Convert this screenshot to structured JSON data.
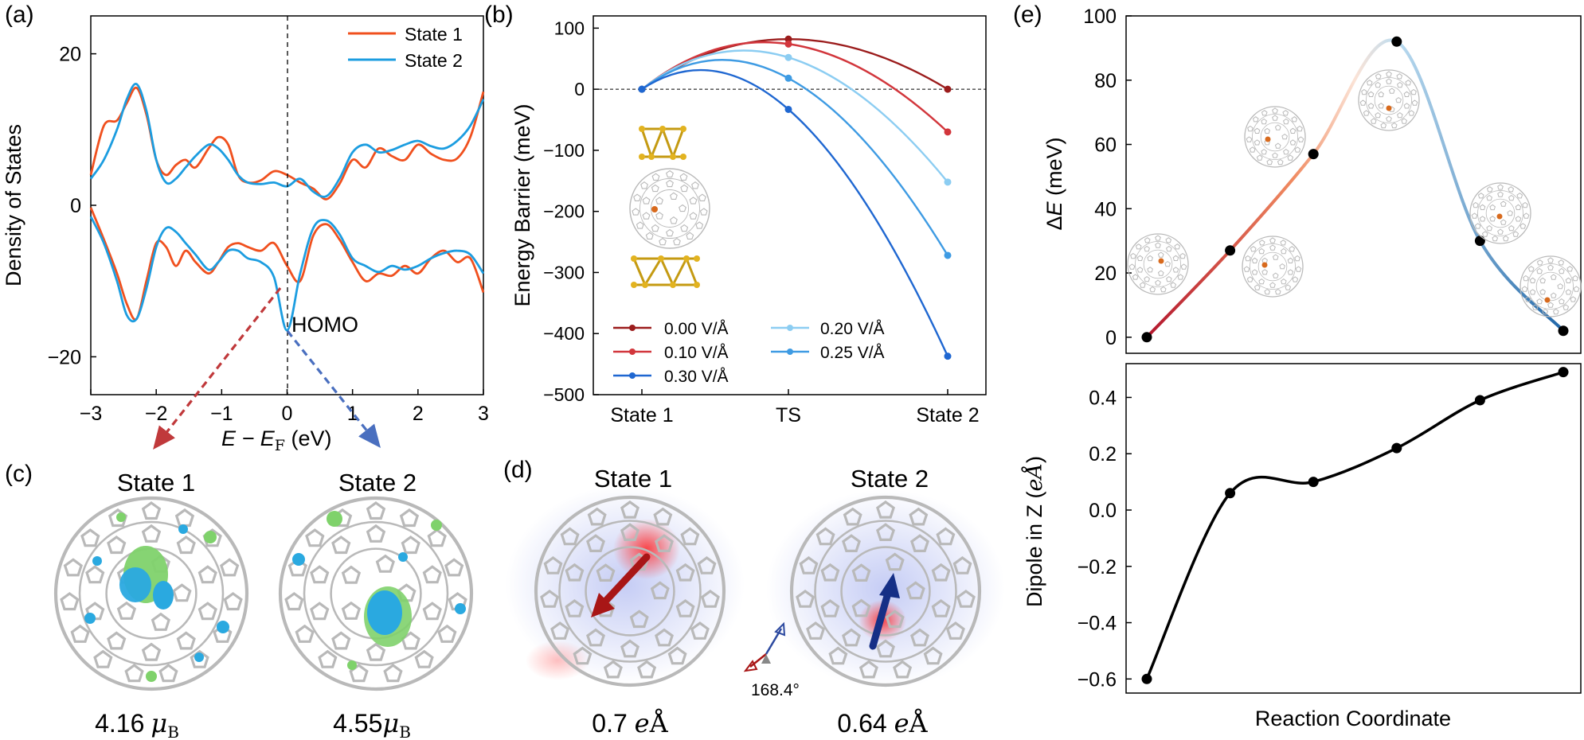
{
  "panel_labels": {
    "a": "(a)",
    "b": "(b)",
    "c": "(c)",
    "d": "(d)",
    "e": "(e)"
  },
  "colors": {
    "state1": "#f0501e",
    "state2": "#1c9de0",
    "field_0": "#9b1c1c",
    "field_010": "#d2363c",
    "field_020": "#8ccdf2",
    "field_025": "#3e9be3",
    "field_030": "#1f67d1",
    "arrow1": "#b02020",
    "arrow2": "#2d5fb0",
    "cage": "#b9b9b9",
    "gold": "#e2b320",
    "lobe_green": "#7fd26b",
    "lobe_blue": "#2aa9e0"
  },
  "chart_data": [
    {
      "id": "a",
      "type": "line",
      "title": "",
      "xlabel_main": "E − E",
      "xlabel_sub": "F",
      "xlabel_unit": " (eV)",
      "ylabel": "Density of States",
      "xlim": [
        -3,
        3
      ],
      "ylim": [
        -25,
        25
      ],
      "xticks": [
        -3,
        -2,
        -1,
        0,
        1,
        2,
        3
      ],
      "yticks": [
        -20,
        0,
        20
      ],
      "annotation": "HOMO",
      "legend": [
        "State 1",
        "State 2"
      ],
      "series": [
        {
          "name": "State 1",
          "spin": "up",
          "x": [
            -3,
            -2.8,
            -2.6,
            -2.45,
            -2.3,
            -2.15,
            -2,
            -1.85,
            -1.7,
            -1.55,
            -1.4,
            -1.2,
            -1.05,
            -0.9,
            -0.75,
            -0.6,
            -0.4,
            -0.2,
            0,
            0.2,
            0.4,
            0.6,
            0.8,
            1,
            1.2,
            1.4,
            1.6,
            1.8,
            2,
            2.2,
            2.4,
            2.6,
            2.8,
            3
          ],
          "y": [
            4,
            10.5,
            11.2,
            13.5,
            15.5,
            12,
            6,
            4,
            5.3,
            6,
            5,
            7.5,
            9,
            8,
            4,
            3,
            3.3,
            4.5,
            4,
            3,
            2.2,
            0.8,
            2.8,
            6,
            5,
            7.5,
            6.5,
            6,
            8,
            6.8,
            6,
            6.2,
            9,
            15
          ]
        },
        {
          "name": "State 2",
          "spin": "up",
          "x": [
            -3,
            -2.8,
            -2.6,
            -2.45,
            -2.3,
            -2.15,
            -2,
            -1.85,
            -1.7,
            -1.55,
            -1.4,
            -1.2,
            -1.05,
            -0.9,
            -0.75,
            -0.6,
            -0.4,
            -0.2,
            0,
            0.2,
            0.4,
            0.6,
            0.8,
            1,
            1.2,
            1.4,
            1.6,
            1.8,
            2,
            2.2,
            2.4,
            2.6,
            2.8,
            3
          ],
          "y": [
            3.5,
            6,
            10,
            14,
            16,
            12.5,
            6,
            3,
            3.5,
            5,
            6.5,
            8,
            7.5,
            6,
            4,
            3,
            2.8,
            3,
            2.5,
            3.5,
            1.8,
            1.2,
            3.5,
            7,
            8,
            7,
            7.3,
            8,
            8.5,
            7.8,
            7.5,
            8.5,
            10.5,
            14
          ]
        },
        {
          "name": "State 1",
          "spin": "down",
          "x": [
            -3,
            -2.8,
            -2.6,
            -2.45,
            -2.3,
            -2.15,
            -2,
            -1.85,
            -1.7,
            -1.55,
            -1.4,
            -1.2,
            -1.05,
            -0.9,
            -0.75,
            -0.6,
            -0.4,
            -0.2,
            0,
            0.2,
            0.4,
            0.6,
            0.8,
            1,
            1.2,
            1.4,
            1.6,
            1.8,
            2,
            2.2,
            2.4,
            2.6,
            2.8,
            3
          ],
          "y": [
            -0.3,
            -4.5,
            -9,
            -13,
            -15,
            -10,
            -5,
            -5.5,
            -8,
            -6,
            -7.5,
            -9,
            -7.5,
            -5.5,
            -5,
            -5.5,
            -6,
            -5,
            -8,
            -10,
            -4,
            -2.5,
            -4.5,
            -7.5,
            -10,
            -9,
            -9.3,
            -8,
            -9,
            -7,
            -6,
            -7.5,
            -7,
            -11.5
          ]
        },
        {
          "name": "State 2",
          "spin": "down",
          "x": [
            -3,
            -2.8,
            -2.6,
            -2.45,
            -2.3,
            -2.15,
            -2,
            -1.85,
            -1.7,
            -1.55,
            -1.4,
            -1.2,
            -1.05,
            -0.9,
            -0.75,
            -0.6,
            -0.4,
            -0.2,
            0,
            0.2,
            0.4,
            0.6,
            0.8,
            1,
            1.2,
            1.4,
            1.6,
            1.8,
            2,
            2.2,
            2.4,
            2.6,
            2.8,
            3
          ],
          "y": [
            -1.5,
            -5,
            -10,
            -14.5,
            -15,
            -11,
            -5.5,
            -3,
            -3.5,
            -5,
            -6.5,
            -8.5,
            -7.5,
            -6,
            -6,
            -7,
            -7.5,
            -9.5,
            -16.5,
            -9,
            -3,
            -2,
            -3.8,
            -7,
            -8,
            -8.8,
            -8,
            -8.5,
            -8,
            -7,
            -6.3,
            -6,
            -6.5,
            -9
          ]
        }
      ]
    },
    {
      "id": "b",
      "type": "line",
      "title": "",
      "xlabel": "",
      "ylabel": "Energy Barrier (meV)",
      "categories": [
        "State 1",
        "TS",
        "State 2"
      ],
      "ylim": [
        -500,
        120
      ],
      "yticks": [
        100,
        0,
        -100,
        -200,
        -300,
        -400,
        -500
      ],
      "series": [
        {
          "name": "0.00 V/Å",
          "values": [
            0,
            82,
            0
          ]
        },
        {
          "name": "0.10 V/Å",
          "values": [
            0,
            74,
            -70
          ]
        },
        {
          "name": "0.20 V/Å",
          "values": [
            0,
            52,
            -152
          ]
        },
        {
          "name": "0.25 V/Å",
          "values": [
            0,
            18,
            -272
          ]
        },
        {
          "name": "0.30 V/Å",
          "values": [
            0,
            -33,
            -437
          ]
        }
      ]
    },
    {
      "id": "e_top",
      "type": "line",
      "title": "",
      "xlabel": "",
      "ylabel_prefix": "Δ",
      "ylabel_italic": "E",
      "ylabel_unit": " (meV)",
      "ylim": [
        -5,
        100
      ],
      "yticks": [
        0,
        20,
        40,
        60,
        80,
        100
      ],
      "x": [
        0,
        0.2,
        0.4,
        0.6,
        0.8,
        1.0
      ],
      "values": [
        0,
        27,
        57,
        92,
        30,
        2
      ]
    },
    {
      "id": "e_bottom",
      "type": "line",
      "title": "",
      "xlabel": "Reaction Coordinate",
      "ylabel_main": "Dipole in Z (",
      "ylabel_unit": "eÅ",
      "ylabel_close": ")",
      "ylim": [
        -0.65,
        0.52
      ],
      "yticks": [
        0.4,
        0.2,
        0.0,
        -0.2,
        -0.4,
        -0.6
      ],
      "x": [
        0,
        0.2,
        0.4,
        0.6,
        0.8,
        1.0
      ],
      "values": [
        -0.6,
        0.06,
        0.1,
        0.22,
        0.39,
        0.49
      ]
    }
  ],
  "panel_c": {
    "state1_title": "State 1",
    "state2_title": "State 2",
    "state1_moment": "4.16",
    "state2_moment": "4.55",
    "unit_mu": "μ",
    "unit_sub": "B"
  },
  "panel_d": {
    "state1_title": "State 1",
    "state2_title": "State 2",
    "state1_dipole": "0.7 ",
    "state2_dipole": "0.64 ",
    "unit_e": "e",
    "unit_A": "Å",
    "angle": "168.4°"
  }
}
